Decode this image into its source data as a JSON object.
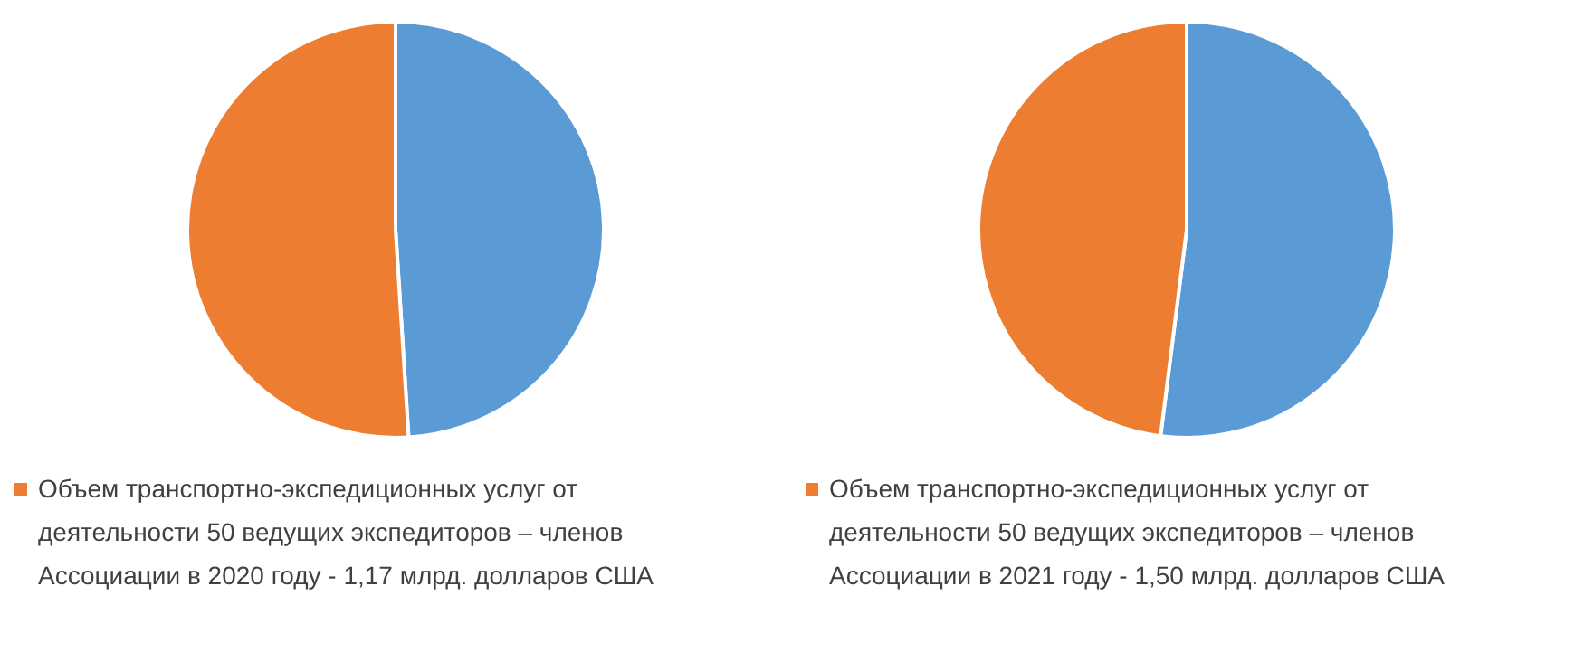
{
  "chart_data": [
    {
      "type": "pie",
      "categories": [
        null,
        "Объем транспортно-экспедиционных услуг от деятельности 50 ведущих экспедиторов – членов Ассоциации в 2020 году  - 1,17 млрд. долларов США"
      ],
      "values": [
        49,
        51
      ],
      "colors": [
        "#5b9bd5",
        "#ed7d31"
      ],
      "legend": "bottom"
    },
    {
      "type": "pie",
      "categories": [
        null,
        "Объем транспортно-экспедиционных услуг от деятельности 50 ведущих экспедиторов – членов Ассоциации в 2021 году - 1,50 млрд. долларов США"
      ],
      "values": [
        52,
        48
      ],
      "colors": [
        "#5b9bd5",
        "#ed7d31"
      ],
      "legend": "bottom"
    }
  ]
}
